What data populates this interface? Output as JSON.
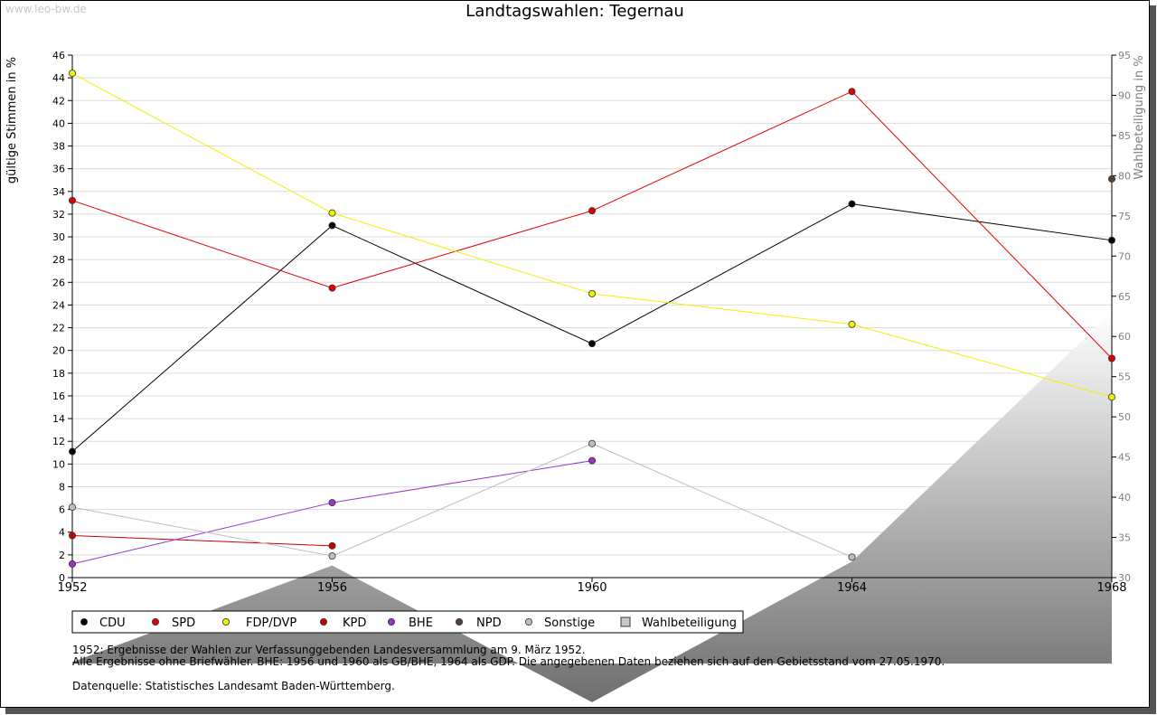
{
  "watermark": "www.leo-bw.de",
  "chart_data": {
    "type": "line",
    "title": "Landtagswahlen: Tegernau",
    "ylabel": "gültige Stimmen in %",
    "ylabel_right": "Wahlbeteiligung in %",
    "x": [
      "1952",
      "1956",
      "1960",
      "1964",
      "1968"
    ],
    "ylim": [
      0,
      46
    ],
    "y_ticks": [
      0,
      2,
      4,
      6,
      8,
      10,
      12,
      14,
      16,
      18,
      20,
      22,
      24,
      26,
      28,
      30,
      32,
      34,
      36,
      38,
      40,
      42,
      44,
      46
    ],
    "ylim_right": [
      30,
      95
    ],
    "y_ticks_right": [
      30,
      35,
      40,
      45,
      50,
      55,
      60,
      65,
      70,
      75,
      80,
      85,
      90,
      95
    ],
    "grid": true,
    "series": [
      {
        "name": "CDU",
        "color": "#000000",
        "values": [
          11.1,
          31.0,
          20.6,
          32.9,
          29.7
        ]
      },
      {
        "name": "SPD",
        "color": "#e00000",
        "values": [
          33.2,
          25.5,
          32.3,
          42.8,
          19.3
        ]
      },
      {
        "name": "FDP/DVP",
        "color": "#f0f000",
        "values": [
          44.4,
          32.1,
          25.0,
          22.3,
          15.9
        ]
      },
      {
        "name": "KPD",
        "color": "#c80000",
        "values": [
          3.7,
          2.8,
          null,
          null,
          null
        ]
      },
      {
        "name": "BHE",
        "color": "#9933cc",
        "values": [
          1.2,
          6.6,
          10.3,
          null,
          null
        ]
      },
      {
        "name": "NPD",
        "color": "#5a4030",
        "values": [
          null,
          null,
          null,
          null,
          35.1
        ]
      },
      {
        "name": "Sonstige",
        "color": "#bdbdbd",
        "values": [
          6.2,
          1.9,
          11.8,
          1.8,
          null
        ]
      }
    ],
    "turnout": {
      "name": "Wahlbeteiligung",
      "values": [
        19.5,
        31.5,
        14.5,
        32.0,
        63.0
      ]
    },
    "legend": [
      "CDU",
      "SPD",
      "FDP/DVP",
      "KPD",
      "BHE",
      "NPD",
      "Sonstige",
      "Wahlbeteiligung"
    ],
    "legend_position": "bottom-left"
  },
  "notes": [
    "1952: Ergebnisse der Wahlen zur Verfassunggebenden Landesversammlung am 9. März 1952.",
    "Alle Ergebnisse ohne Briefwähler. BHE: 1956 und 1960 als GB/BHE, 1964 als GDP. Die angegebenen Daten beziehen sich auf den Gebietsstand vom 27.05.1970."
  ],
  "source": "Datenquelle: Statistisches Landesamt Baden-Württemberg."
}
